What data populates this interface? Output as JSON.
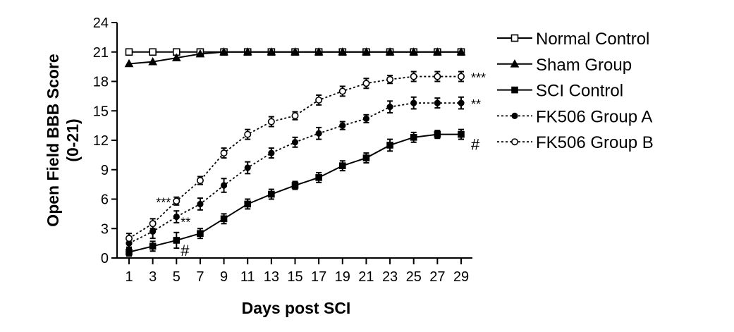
{
  "chart_data": {
    "type": "line",
    "title": "",
    "xlabel": "Days post SCI",
    "ylabel": [
      "Open Field BBB Score",
      "(0-21)"
    ],
    "x": [
      1,
      3,
      5,
      7,
      9,
      11,
      13,
      15,
      17,
      19,
      21,
      23,
      25,
      27,
      29
    ],
    "xticks": [
      "1",
      "3",
      "5",
      "7",
      "9",
      "11",
      "13",
      "15",
      "17",
      "19",
      "21",
      "23",
      "25",
      "27",
      "29"
    ],
    "ylim": [
      0,
      24
    ],
    "yticks": [
      "0",
      "3",
      "6",
      "9",
      "12",
      "15",
      "18",
      "21",
      "24"
    ],
    "grid": false,
    "legend_position": "right",
    "series": [
      {
        "name": "Normal Control",
        "marker": "open-square",
        "line": "solid",
        "values": [
          21,
          21,
          21,
          21,
          21,
          21,
          21,
          21,
          21,
          21,
          21,
          21,
          21,
          21,
          21
        ],
        "errors": [
          0,
          0,
          0,
          0,
          0,
          0,
          0,
          0,
          0,
          0,
          0,
          0,
          0,
          0,
          0
        ]
      },
      {
        "name": "Sham Group",
        "marker": "filled-triangle",
        "line": "solid",
        "values": [
          19.8,
          20.0,
          20.4,
          20.8,
          21,
          21,
          21,
          21,
          21,
          21,
          21,
          21,
          21,
          21,
          21
        ],
        "errors": [
          0,
          0,
          0,
          0,
          0,
          0,
          0,
          0,
          0,
          0,
          0,
          0,
          0,
          0,
          0
        ]
      },
      {
        "name": "SCI Control",
        "marker": "filled-square",
        "line": "solid",
        "values": [
          0.6,
          1.2,
          1.8,
          2.5,
          4.0,
          5.5,
          6.5,
          7.4,
          8.2,
          9.4,
          10.2,
          11.5,
          12.3,
          12.6,
          12.6
        ],
        "errors": [
          0.4,
          0.5,
          0.8,
          0.5,
          0.5,
          0.5,
          0.5,
          0.4,
          0.5,
          0.5,
          0.5,
          0.6,
          0.5,
          0.4,
          0.5
        ]
      },
      {
        "name": "FK506 Group A",
        "marker": "filled-circle",
        "line": "dotted",
        "values": [
          1.5,
          2.7,
          4.2,
          5.5,
          7.4,
          9.2,
          10.7,
          11.8,
          12.7,
          13.5,
          14.2,
          15.4,
          15.8,
          15.8,
          15.8
        ],
        "errors": [
          0.4,
          0.7,
          0.6,
          0.6,
          0.7,
          0.6,
          0.5,
          0.5,
          0.6,
          0.4,
          0.4,
          0.6,
          0.6,
          0.5,
          0.6
        ]
      },
      {
        "name": "FK506 Group B",
        "marker": "open-circle",
        "line": "dotted",
        "values": [
          2.0,
          3.5,
          5.8,
          7.9,
          10.7,
          12.6,
          13.9,
          14.5,
          16.1,
          17.0,
          17.8,
          18.2,
          18.5,
          18.5,
          18.5
        ],
        "errors": [
          0.5,
          0.5,
          0.4,
          0.4,
          0.5,
          0.5,
          0.5,
          0.4,
          0.5,
          0.5,
          0.5,
          0.4,
          0.5,
          0.5,
          0.5
        ]
      }
    ],
    "annotations": [
      {
        "text": "***",
        "x": 5,
        "y": 5.8,
        "side": "left"
      },
      {
        "text": "**",
        "x": 5,
        "y": 4.2,
        "side": "right"
      },
      {
        "text": "#",
        "x": 5,
        "y": 1.8,
        "side": "right"
      },
      {
        "text": "***",
        "x": 29,
        "y": 18.5,
        "side": "right"
      },
      {
        "text": "**",
        "x": 29,
        "y": 15.8,
        "side": "right"
      },
      {
        "text": "#",
        "x": 29,
        "y": 12.6,
        "side": "right"
      }
    ]
  }
}
